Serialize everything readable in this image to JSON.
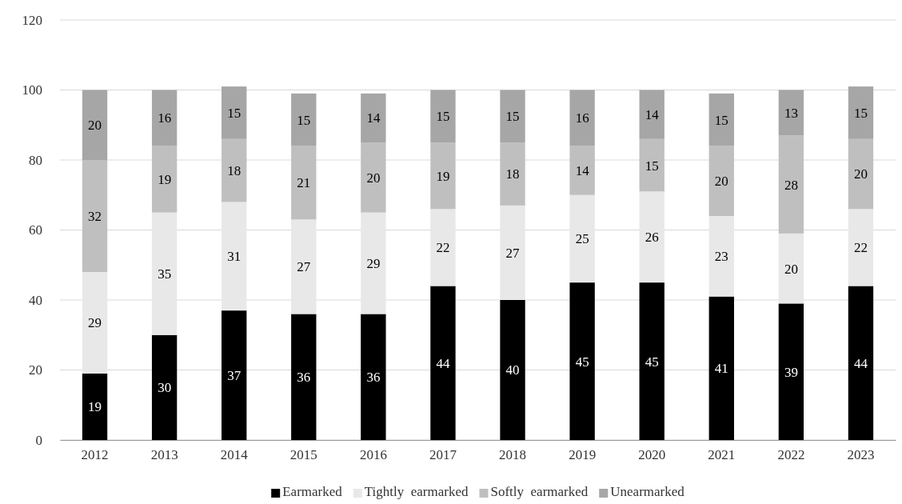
{
  "chart_data": {
    "type": "bar",
    "stacked": true,
    "categories": [
      "2012",
      "2013",
      "2014",
      "2015",
      "2016",
      "2017",
      "2018",
      "2019",
      "2020",
      "2021",
      "2022",
      "2023"
    ],
    "series": [
      {
        "name": "Earmarked",
        "color": "#000000",
        "values": [
          19,
          30,
          37,
          36,
          36,
          44,
          40,
          45,
          45,
          41,
          39,
          44
        ]
      },
      {
        "name": "Tightly  earmarked",
        "color": "#e8e8e8",
        "values": [
          29,
          35,
          31,
          27,
          29,
          22,
          27,
          25,
          26,
          23,
          20,
          22
        ]
      },
      {
        "name": "Softly  earmarked",
        "color": "#bfbfbf",
        "values": [
          32,
          19,
          18,
          21,
          20,
          19,
          18,
          14,
          15,
          20,
          28,
          20
        ]
      },
      {
        "name": "Unearmarked",
        "color": "#a6a6a6",
        "values": [
          20,
          16,
          15,
          15,
          14,
          15,
          15,
          16,
          14,
          15,
          13,
          15
        ]
      }
    ],
    "ylim": [
      0,
      120
    ],
    "yticks": [
      0,
      20,
      40,
      60,
      80,
      100,
      120
    ],
    "grid": "y",
    "legend": "bottom",
    "data_labels": true
  }
}
